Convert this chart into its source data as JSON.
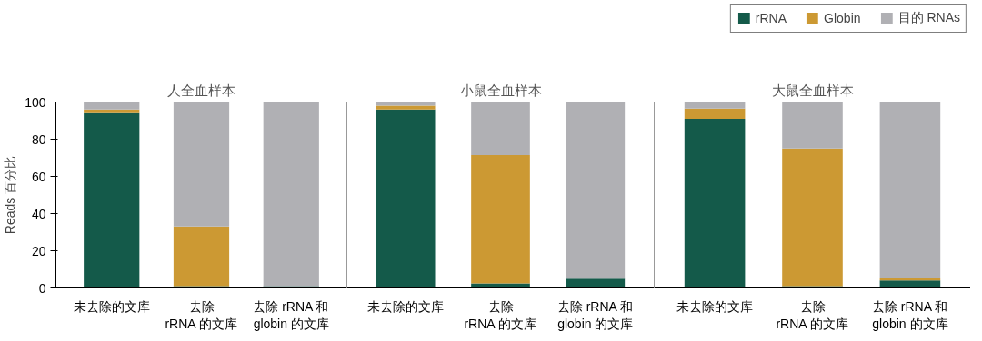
{
  "chart_data": [
    {
      "type": "bar",
      "title": "人全血样本",
      "ylabel": "Reads 百分比",
      "categories": [
        "未去除的文库",
        "去除\nrRNA 的文库",
        "去除 rRNA 和\nglobin 的文库"
      ],
      "stacked": true,
      "ylim": [
        0,
        100
      ],
      "yticks": [
        0,
        20,
        40,
        60,
        80,
        100
      ],
      "grid": false,
      "series": [
        {
          "color": "#145a4a",
          "values": [
            94,
            1,
            1
          ]
        },
        {
          "color": "#cc9933",
          "values": [
            2,
            32,
            0
          ]
        },
        {
          "color": "#b0b0b4",
          "values": [
            4,
            67,
            99
          ]
        }
      ]
    },
    {
      "type": "bar",
      "title": "小鼠全血样本",
      "categories": [
        "未去除的文库",
        "去除\nrRNA 的文库",
        "去除 rRNA 和\nglobin 的文库"
      ],
      "stacked": true,
      "ylim": [
        0,
        100
      ],
      "tick_labels": "x",
      "grid": false,
      "series": [
        {
          "color": "#145a4a",
          "values": [
            96,
            2.5,
            5
          ]
        },
        {
          "color": "#cc9933",
          "values": [
            2,
            69,
            0
          ]
        },
        {
          "color": "#b0b0b4",
          "values": [
            2,
            28.5,
            95
          ]
        }
      ]
    },
    {
      "type": "bar",
      "title": "大鼠全血样本",
      "categories": [
        "未去除的文库",
        "去除\nrRNA 的文库",
        "去除 rRNA 和\nglobin 的文库"
      ],
      "stacked": true,
      "ylim": [
        0,
        100
      ],
      "tick_labels": "x",
      "grid": false,
      "legend": "top right",
      "series": [
        {
          "name": "rRNA",
          "color": "#145a4a",
          "values": [
            91,
            1,
            4
          ]
        },
        {
          "name": "Globin",
          "color": "#cc9933",
          "values": [
            5.5,
            74,
            1.5
          ]
        },
        {
          "name": "目的 RNAs",
          "color": "#b0b0b4",
          "values": [
            3.5,
            25,
            94.5
          ]
        }
      ]
    }
  ]
}
